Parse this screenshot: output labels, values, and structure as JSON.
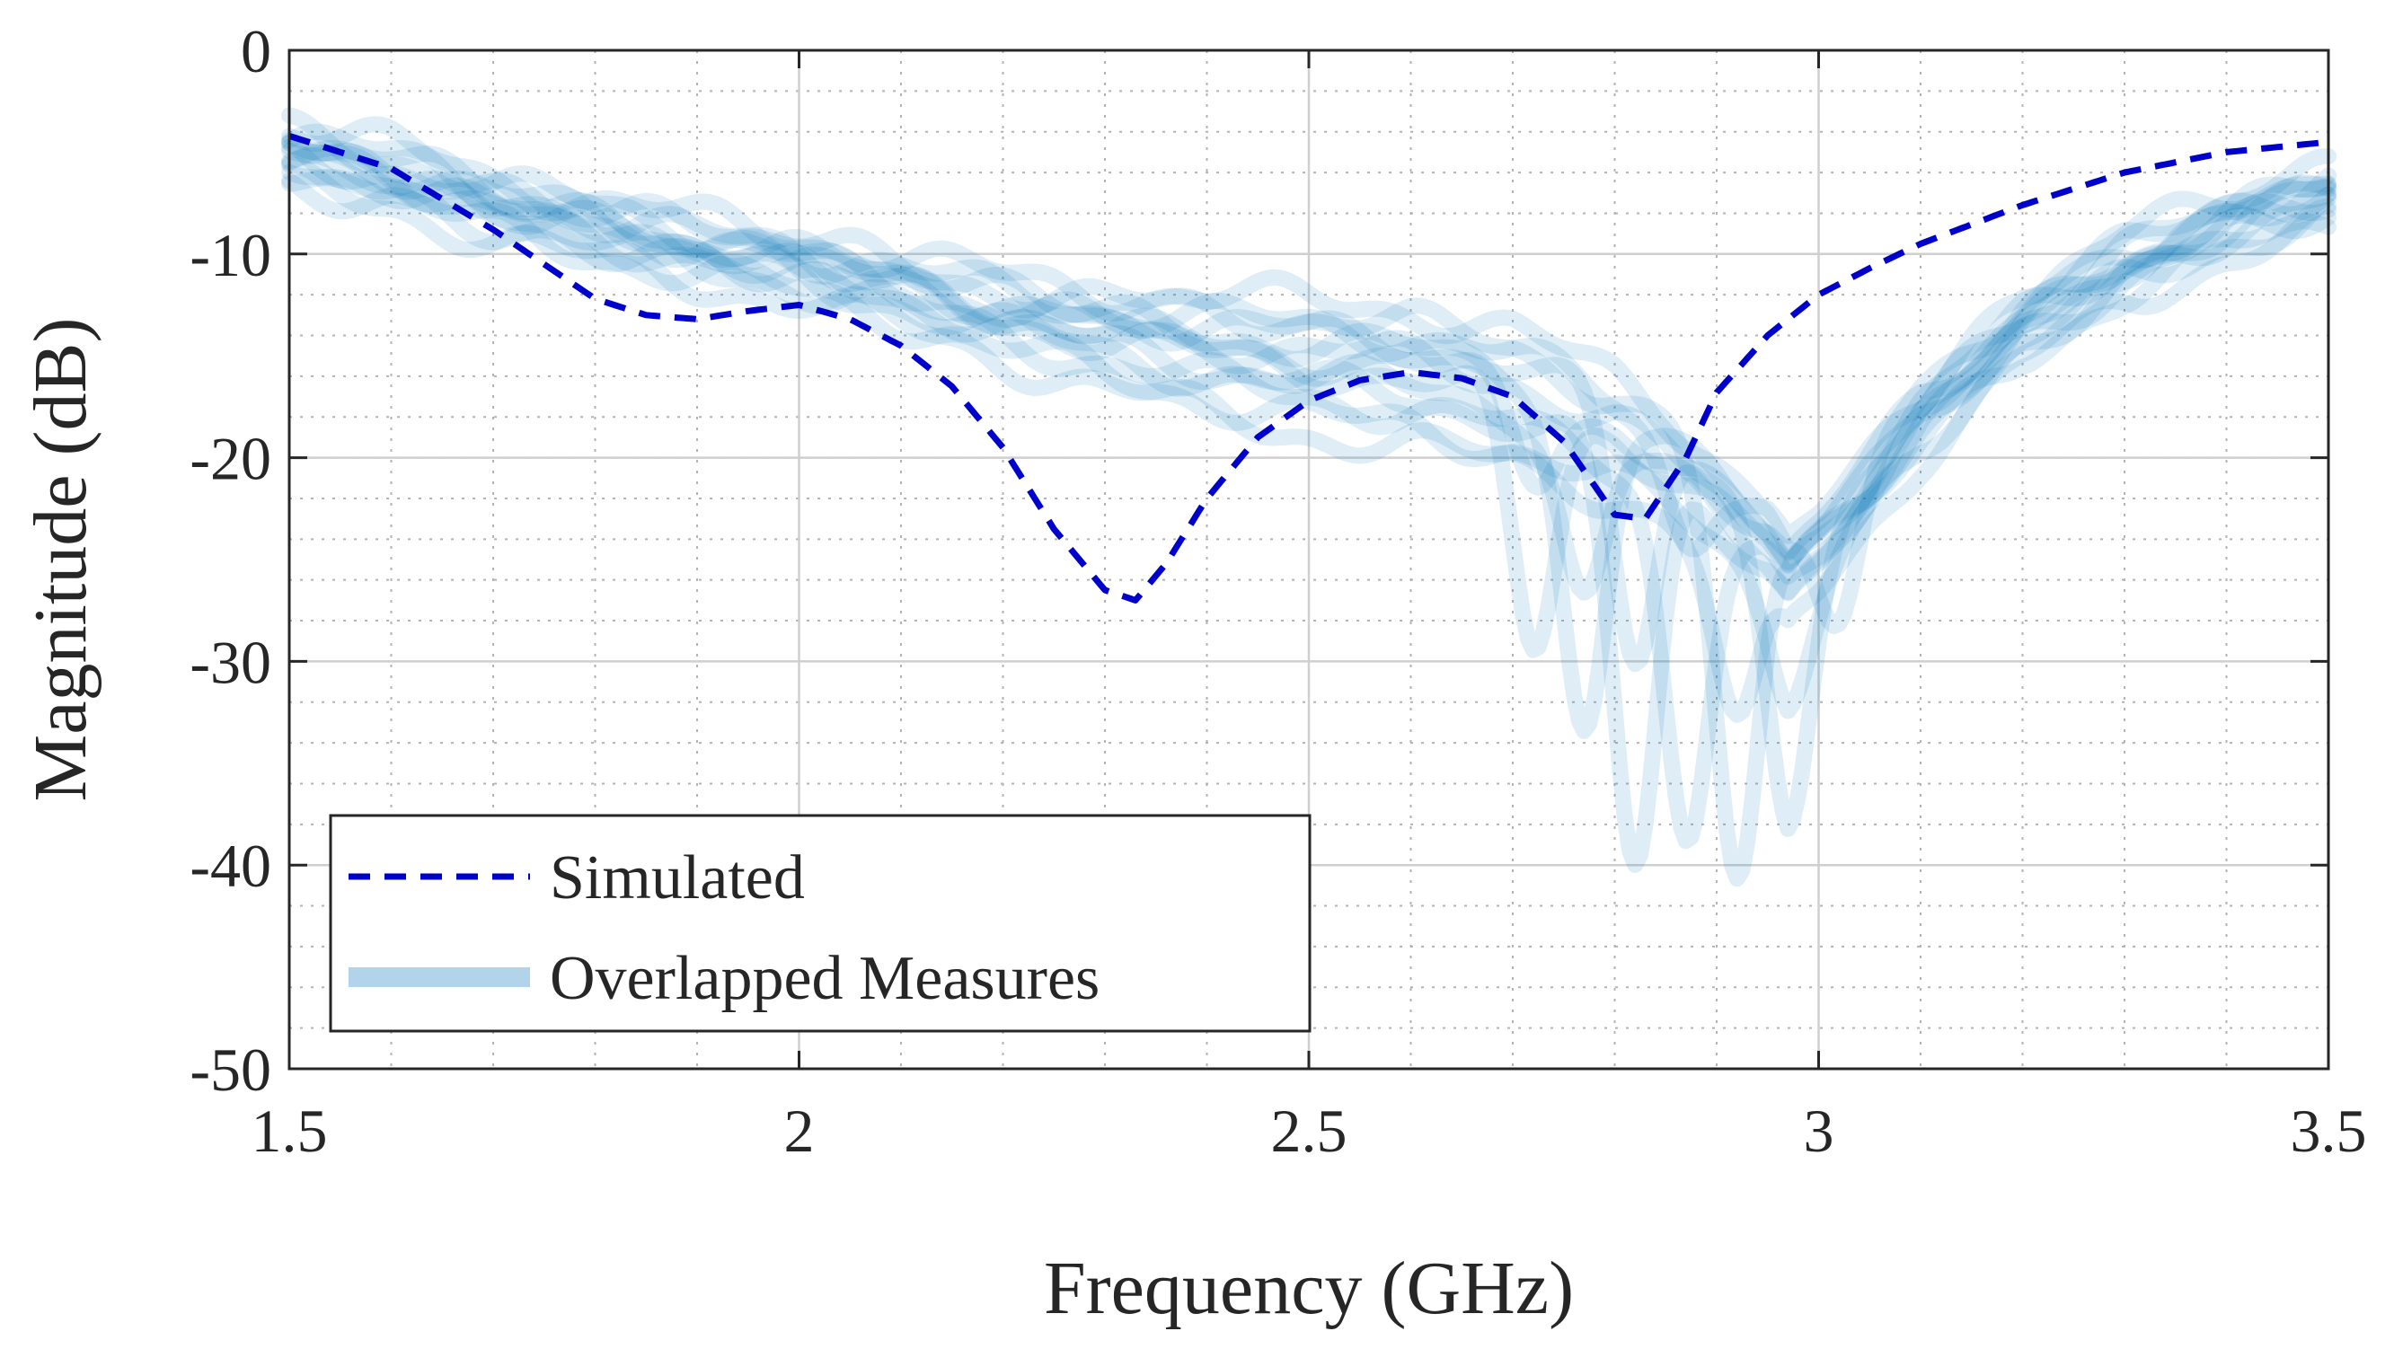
{
  "chart_data": {
    "type": "line",
    "xlabel": "Frequency (GHz)",
    "ylabel": "Magnitude (dB)",
    "xlim": [
      1.5,
      3.5
    ],
    "ylim": [
      -50,
      0
    ],
    "xticks": [
      1.5,
      2,
      2.5,
      3,
      3.5
    ],
    "xtick_labels": [
      "1.5",
      "2",
      "2.5",
      "3",
      "3.5"
    ],
    "yticks": [
      0,
      -10,
      -20,
      -30,
      -40,
      -50
    ],
    "ytick_labels": [
      "0",
      "-10",
      "-20",
      "-30",
      "-40",
      "-50"
    ],
    "grid": true,
    "minor_grid": true,
    "legend_position": "bottom-left",
    "colors": {
      "simulated": "#0000cc",
      "measured": "#0072bd",
      "axis": "#262626"
    },
    "series": [
      {
        "name": "Simulated",
        "style": "dashed",
        "x": [
          1.5,
          1.6,
          1.7,
          1.75,
          1.8,
          1.85,
          1.9,
          1.95,
          2.0,
          2.05,
          2.1,
          2.15,
          2.2,
          2.25,
          2.3,
          2.33,
          2.36,
          2.4,
          2.45,
          2.5,
          2.55,
          2.6,
          2.65,
          2.7,
          2.75,
          2.8,
          2.83,
          2.87,
          2.9,
          2.95,
          3.0,
          3.05,
          3.1,
          3.2,
          3.3,
          3.4,
          3.5
        ],
        "y": [
          -4.2,
          -5.8,
          -8.8,
          -10.5,
          -12.2,
          -13.0,
          -13.2,
          -12.8,
          -12.5,
          -13.2,
          -14.5,
          -16.5,
          -19.5,
          -23.5,
          -26.5,
          -27.0,
          -25.2,
          -22.0,
          -19.0,
          -17.2,
          -16.2,
          -15.8,
          -16.1,
          -17.0,
          -19.2,
          -22.8,
          -23.0,
          -20.0,
          -16.8,
          -14.0,
          -12.0,
          -10.7,
          -9.5,
          -7.6,
          -6.0,
          -5.0,
          -4.5
        ]
      },
      {
        "name": "Overlapped Measures",
        "style": "solid-translucent",
        "x": [
          1.5,
          1.6,
          1.7,
          1.8,
          1.9,
          2.0,
          2.1,
          2.2,
          2.3,
          2.4,
          2.5,
          2.6,
          2.7,
          2.8,
          2.85,
          2.9,
          2.95,
          2.97,
          3.0,
          3.05,
          3.1,
          3.2,
          3.3,
          3.4,
          3.5
        ],
        "y": [
          -5.0,
          -6.0,
          -7.5,
          -8.6,
          -9.6,
          -10.5,
          -11.6,
          -12.8,
          -13.8,
          -14.5,
          -15.0,
          -15.5,
          -16.5,
          -18.5,
          -20.0,
          -22.0,
          -24.0,
          -25.5,
          -24.0,
          -21.0,
          -18.0,
          -13.5,
          -10.5,
          -8.5,
          -7.0
        ]
      }
    ],
    "measure_offsets": [
      0,
      -0.8,
      0.8,
      -1.5,
      1.4,
      -2.2,
      2.0,
      -0.4,
      0.5,
      -1.1,
      1.1,
      -2.8,
      0.2
    ],
    "legend": [
      "Simulated",
      "Overlapped Measures"
    ]
  }
}
